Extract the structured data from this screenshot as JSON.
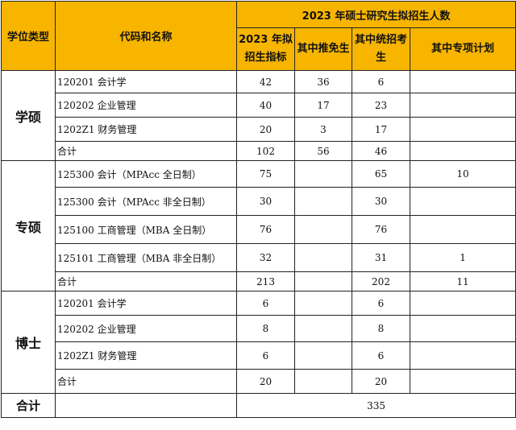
{
  "header": {
    "type_col": "学位类型",
    "code_col": "代码和名称",
    "group_title": "2023 年硕士研究生拟招生人数",
    "sub_cols": [
      "2023 年拟招生指标",
      "其中推免生",
      "其中统招考生",
      "其中专项计划"
    ]
  },
  "sections": [
    {
      "type": "学硕",
      "rows": [
        {
          "name": "120201 会计学",
          "quota": "42",
          "exempt": "36",
          "unified": "6",
          "special": ""
        },
        {
          "name": "120202 企业管理",
          "quota": "40",
          "exempt": "17",
          "unified": "23",
          "special": ""
        },
        {
          "name": "1202Z1 财务管理",
          "quota": "20",
          "exempt": "3",
          "unified": "17",
          "special": ""
        },
        {
          "name": "合计",
          "quota": "102",
          "exempt": "56",
          "unified": "46",
          "special": ""
        }
      ]
    },
    {
      "type": "专硕",
      "rows": [
        {
          "name": "125300 会计（MPAcc 全日制）",
          "quota": "75",
          "exempt": "",
          "unified": "65",
          "special": "10"
        },
        {
          "name": "125300 会计（MPAcc 非全日制）",
          "quota": "30",
          "exempt": "",
          "unified": "30",
          "special": ""
        },
        {
          "name": "125100 工商管理（MBA 全日制）",
          "quota": "76",
          "exempt": "",
          "unified": "76",
          "special": ""
        },
        {
          "name": "125101 工商管理（MBA 非全日制）",
          "quota": "32",
          "exempt": "",
          "unified": "31",
          "special": "1"
        },
        {
          "name": "合计",
          "quota": "213",
          "exempt": "",
          "unified": "202",
          "special": "11"
        }
      ]
    },
    {
      "type": "博士",
      "rows": [
        {
          "name": "120201 会计学",
          "quota": "6",
          "exempt": "",
          "unified": "6",
          "special": ""
        },
        {
          "name": "120202 企业管理",
          "quota": "8",
          "exempt": "",
          "unified": "8",
          "special": ""
        },
        {
          "name": "1202Z1 财务管理",
          "quota": "6",
          "exempt": "",
          "unified": "6",
          "special": ""
        },
        {
          "name": "合计",
          "quota": "20",
          "exempt": "",
          "unified": "20",
          "special": ""
        }
      ]
    }
  ],
  "grand_total": {
    "label": "合计",
    "value": "335"
  }
}
